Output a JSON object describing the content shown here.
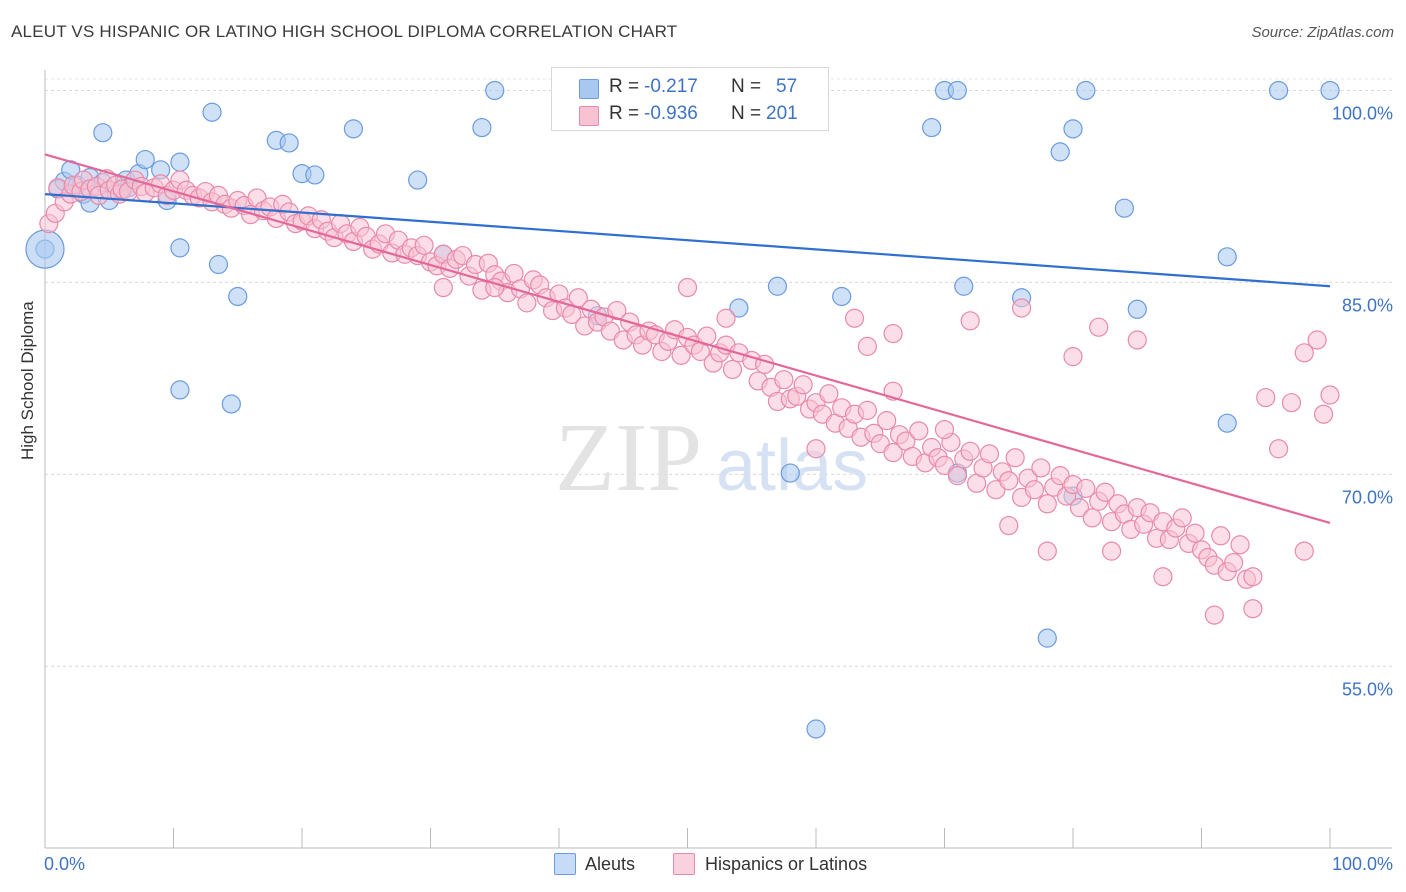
{
  "header": {
    "title": "ALEUT VS HISPANIC OR LATINO HIGH SCHOOL DIPLOMA CORRELATION CHART",
    "source": "Source: ZipAtlas.com"
  },
  "watermark": {
    "part1": "ZIP",
    "part2": "atlas"
  },
  "legend": {
    "r_label": "R =",
    "n_label": "N =",
    "rows": [
      {
        "r": "-0.217",
        "n": "57",
        "color": "#a8c8f0",
        "stroke": "#6b9be0"
      },
      {
        "r": "-0.936",
        "n": "201",
        "color": "#f7c3d3",
        "stroke": "#e98aaa"
      }
    ]
  },
  "bottom_legend": [
    {
      "label": "Aleuts",
      "color": "#a8c8f0",
      "stroke": "#6b9be0"
    },
    {
      "label": "Hispanics or Latinos",
      "color": "#f7c3d3",
      "stroke": "#e98aaa"
    }
  ],
  "chart_data": {
    "type": "scatter",
    "title": "ALEUT VS HISPANIC OR LATINO HIGH SCHOOL DIPLOMA CORRELATION CHART",
    "xlabel": "",
    "ylabel": "High School Diploma",
    "xlim": [
      0,
      100
    ],
    "ylim": [
      40.8,
      101.6
    ],
    "x_tick_labels": [
      "0.0%",
      "100.0%"
    ],
    "y_ticks": [
      55.0,
      70.0,
      85.0,
      100.0
    ],
    "y_tick_labels": [
      "55.0%",
      "70.0%",
      "85.0%",
      "100.0%"
    ],
    "grid": true,
    "series": [
      {
        "name": "Aleuts",
        "color": "#6b9be0",
        "fill": "#a8c8f0",
        "trend": {
          "x": [
            0,
            100
          ],
          "y": [
            91.9,
            84.7
          ],
          "color": "#2f6fcf"
        },
        "points": [
          [
            0,
            87.6
          ],
          [
            1,
            92.3
          ],
          [
            1.5,
            92.9
          ],
          [
            2,
            93.8
          ],
          [
            2.5,
            92.6
          ],
          [
            3,
            91.9
          ],
          [
            3.5,
            93.2
          ],
          [
            3.5,
            91.2
          ],
          [
            4.5,
            92.8
          ],
          [
            5,
            91.4
          ],
          [
            4.5,
            96.7
          ],
          [
            6,
            92.2
          ],
          [
            6.3,
            93.0
          ],
          [
            6.5,
            92.4
          ],
          [
            7.3,
            93.5
          ],
          [
            7.8,
            94.6
          ],
          [
            9,
            93.8
          ],
          [
            9.5,
            91.4
          ],
          [
            10.5,
            94.4
          ],
          [
            10.5,
            87.7
          ],
          [
            10.5,
            76.6
          ],
          [
            13,
            98.3
          ],
          [
            13.5,
            86.4
          ],
          [
            14.5,
            75.5
          ],
          [
            15,
            83.9
          ],
          [
            18,
            96.1
          ],
          [
            19,
            95.9
          ],
          [
            20,
            93.5
          ],
          [
            21,
            93.4
          ],
          [
            24,
            97.0
          ],
          [
            29,
            93.0
          ],
          [
            31,
            87.2
          ],
          [
            34,
            97.1
          ],
          [
            35,
            100.0
          ],
          [
            43,
            82.4
          ],
          [
            47,
            100.0
          ],
          [
            54,
            83.0
          ],
          [
            56,
            100.0
          ],
          [
            57,
            84.7
          ],
          [
            58,
            70.1
          ],
          [
            60,
            50.1
          ],
          [
            62,
            83.9
          ],
          [
            69,
            97.1
          ],
          [
            70,
            100.0
          ],
          [
            71,
            100.0
          ],
          [
            71,
            70.1
          ],
          [
            71.5,
            84.7
          ],
          [
            76,
            83.8
          ],
          [
            78,
            57.2
          ],
          [
            79,
            95.2
          ],
          [
            80,
            97.0
          ],
          [
            80,
            68.3
          ],
          [
            81,
            100.0
          ],
          [
            84,
            90.8
          ],
          [
            85,
            82.9
          ],
          [
            92,
            74.0
          ],
          [
            92,
            87.0
          ],
          [
            96,
            100.0
          ],
          [
            100,
            100.0
          ]
        ]
      },
      {
        "name": "Hispanics or Latinos",
        "color": "#e98aaa",
        "fill": "#f7c3d3",
        "trend": {
          "x": [
            0,
            100
          ],
          "y": [
            95.0,
            66.2
          ],
          "color": "#e4679a"
        },
        "points": [
          [
            0.3,
            89.6
          ],
          [
            0.8,
            90.4
          ],
          [
            1,
            92.4
          ],
          [
            1.5,
            91.3
          ],
          [
            2,
            91.9
          ],
          [
            2.2,
            92.6
          ],
          [
            2.8,
            92.1
          ],
          [
            3,
            93.0
          ],
          [
            3.5,
            92.3
          ],
          [
            4,
            92.5
          ],
          [
            4.2,
            91.8
          ],
          [
            4.8,
            93.1
          ],
          [
            5,
            92.2
          ],
          [
            5.5,
            92.6
          ],
          [
            5.8,
            91.9
          ],
          [
            6,
            92.3
          ],
          [
            6.5,
            92.1
          ],
          [
            7,
            93.0
          ],
          [
            7.5,
            92.5
          ],
          [
            7.8,
            92.0
          ],
          [
            8.5,
            92.4
          ],
          [
            9,
            92.7
          ],
          [
            9.5,
            91.8
          ],
          [
            10,
            92.2
          ],
          [
            10.5,
            93.0
          ],
          [
            11,
            92.2
          ],
          [
            11.5,
            91.8
          ],
          [
            12,
            91.6
          ],
          [
            12.5,
            92.1
          ],
          [
            13,
            91.3
          ],
          [
            13.5,
            91.8
          ],
          [
            14,
            91.1
          ],
          [
            14.5,
            90.8
          ],
          [
            15,
            91.4
          ],
          [
            15.5,
            91.0
          ],
          [
            16,
            90.3
          ],
          [
            16.5,
            91.6
          ],
          [
            17,
            90.6
          ],
          [
            17.5,
            90.9
          ],
          [
            18,
            90.0
          ],
          [
            18.5,
            91.1
          ],
          [
            19,
            90.5
          ],
          [
            19.5,
            89.6
          ],
          [
            20,
            89.8
          ],
          [
            20.5,
            90.2
          ],
          [
            21,
            89.2
          ],
          [
            21.5,
            89.9
          ],
          [
            22,
            89.0
          ],
          [
            22.5,
            88.5
          ],
          [
            23,
            89.6
          ],
          [
            23.5,
            88.8
          ],
          [
            24,
            88.2
          ],
          [
            24.5,
            89.3
          ],
          [
            25,
            88.6
          ],
          [
            25.5,
            87.6
          ],
          [
            26,
            88.0
          ],
          [
            26.5,
            88.8
          ],
          [
            27,
            87.3
          ],
          [
            27.5,
            88.3
          ],
          [
            28,
            87.2
          ],
          [
            28.5,
            87.7
          ],
          [
            29,
            87.1
          ],
          [
            29.5,
            87.9
          ],
          [
            30,
            86.6
          ],
          [
            30.5,
            86.3
          ],
          [
            31,
            87.2
          ],
          [
            31.5,
            86.1
          ],
          [
            32,
            86.8
          ],
          [
            32.5,
            87.1
          ],
          [
            33,
            85.5
          ],
          [
            33.5,
            86.4
          ],
          [
            34,
            84.4
          ],
          [
            34.5,
            86.5
          ],
          [
            35,
            85.6
          ],
          [
            35.5,
            85.1
          ],
          [
            36,
            84.2
          ],
          [
            36.5,
            85.7
          ],
          [
            37,
            84.5
          ],
          [
            37.5,
            83.4
          ],
          [
            38,
            85.2
          ],
          [
            38.5,
            84.8
          ],
          [
            39,
            83.8
          ],
          [
            39.5,
            82.8
          ],
          [
            40,
            84.1
          ],
          [
            40.5,
            83.0
          ],
          [
            41,
            82.5
          ],
          [
            41.5,
            83.8
          ],
          [
            42,
            81.6
          ],
          [
            42.5,
            82.9
          ],
          [
            43,
            81.9
          ],
          [
            43.5,
            82.3
          ],
          [
            44,
            81.2
          ],
          [
            44.5,
            82.8
          ],
          [
            45,
            80.5
          ],
          [
            45.5,
            81.9
          ],
          [
            46,
            80.9
          ],
          [
            46.5,
            80.1
          ],
          [
            47,
            81.2
          ],
          [
            47.5,
            80.9
          ],
          [
            48,
            79.6
          ],
          [
            48.5,
            80.4
          ],
          [
            49,
            81.3
          ],
          [
            49.5,
            79.3
          ],
          [
            50,
            80.7
          ],
          [
            50.5,
            80.1
          ],
          [
            51,
            79.6
          ],
          [
            51.5,
            80.8
          ],
          [
            52,
            78.7
          ],
          [
            52.5,
            79.5
          ],
          [
            53,
            80.1
          ],
          [
            53.5,
            78.2
          ],
          [
            54,
            79.5
          ],
          [
            55,
            78.9
          ],
          [
            55.5,
            77.3
          ],
          [
            56,
            78.6
          ],
          [
            56.5,
            76.8
          ],
          [
            57,
            75.7
          ],
          [
            57.5,
            77.4
          ],
          [
            58,
            75.9
          ],
          [
            58.5,
            76.1
          ],
          [
            59,
            77.0
          ],
          [
            59.5,
            75.1
          ],
          [
            60,
            75.6
          ],
          [
            60.5,
            74.7
          ],
          [
            61,
            76.3
          ],
          [
            61.5,
            74.0
          ],
          [
            62,
            75.2
          ],
          [
            62.5,
            73.6
          ],
          [
            63,
            74.7
          ],
          [
            63.5,
            72.9
          ],
          [
            64,
            75.0
          ],
          [
            64.5,
            73.2
          ],
          [
            65,
            72.4
          ],
          [
            65.5,
            74.2
          ],
          [
            66,
            71.7
          ],
          [
            66.5,
            73.1
          ],
          [
            67,
            72.6
          ],
          [
            67.5,
            71.4
          ],
          [
            68,
            73.4
          ],
          [
            68.5,
            70.9
          ],
          [
            69,
            72.1
          ],
          [
            69.5,
            71.3
          ],
          [
            70,
            70.7
          ],
          [
            70.5,
            72.5
          ],
          [
            71,
            69.9
          ],
          [
            71.5,
            71.2
          ],
          [
            72,
            71.8
          ],
          [
            72.5,
            69.3
          ],
          [
            73,
            70.5
          ],
          [
            73.5,
            71.6
          ],
          [
            74,
            68.8
          ],
          [
            74.5,
            70.2
          ],
          [
            75,
            69.5
          ],
          [
            75.5,
            71.3
          ],
          [
            76,
            68.2
          ],
          [
            76.5,
            69.7
          ],
          [
            77,
            68.8
          ],
          [
            77.5,
            70.5
          ],
          [
            78,
            67.7
          ],
          [
            78.5,
            69.0
          ],
          [
            79,
            69.9
          ],
          [
            79.5,
            68.3
          ],
          [
            80,
            69.2
          ],
          [
            80.5,
            67.4
          ],
          [
            81,
            68.9
          ],
          [
            81.5,
            66.6
          ],
          [
            82,
            67.9
          ],
          [
            82.5,
            68.6
          ],
          [
            83,
            66.3
          ],
          [
            83.5,
            67.7
          ],
          [
            84,
            66.9
          ],
          [
            84.5,
            65.7
          ],
          [
            85,
            67.4
          ],
          [
            85.5,
            66.1
          ],
          [
            86,
            67.0
          ],
          [
            86.5,
            65.0
          ],
          [
            87,
            66.3
          ],
          [
            87.5,
            64.9
          ],
          [
            88,
            65.8
          ],
          [
            88.5,
            66.6
          ],
          [
            89,
            64.6
          ],
          [
            89.5,
            65.4
          ],
          [
            90,
            64.1
          ],
          [
            90.5,
            63.5
          ],
          [
            91,
            62.9
          ],
          [
            91.5,
            65.2
          ],
          [
            92,
            62.4
          ],
          [
            92.5,
            63.1
          ],
          [
            93,
            64.5
          ],
          [
            93.5,
            61.8
          ],
          [
            31,
            84.6
          ],
          [
            35,
            84.6
          ],
          [
            50,
            84.6
          ],
          [
            53,
            82.2
          ],
          [
            63,
            82.2
          ],
          [
            64,
            80.0
          ],
          [
            66,
            81.0
          ],
          [
            72,
            82.0
          ],
          [
            76,
            83.0
          ],
          [
            80,
            79.2
          ],
          [
            82,
            81.5
          ],
          [
            85,
            80.5
          ],
          [
            95,
            76.0
          ],
          [
            96,
            72.0
          ],
          [
            97,
            75.6
          ],
          [
            98,
            79.5
          ],
          [
            99,
            80.5
          ],
          [
            100,
            76.2
          ],
          [
            99.5,
            74.7
          ],
          [
            94,
            59.5
          ],
          [
            60,
            72.0
          ],
          [
            66,
            76.5
          ],
          [
            70,
            73.5
          ],
          [
            75,
            66.0
          ],
          [
            78,
            64.0
          ],
          [
            83,
            64.0
          ],
          [
            87,
            62.0
          ],
          [
            91,
            59.0
          ],
          [
            94,
            62.0
          ],
          [
            98,
            64.0
          ]
        ]
      }
    ]
  }
}
